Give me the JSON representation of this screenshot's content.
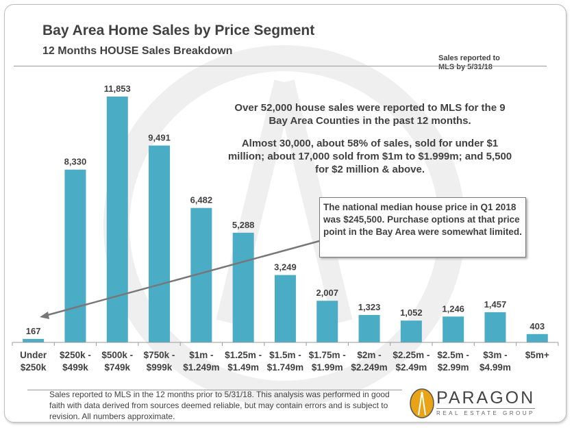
{
  "header": {
    "title": "Bay Area Home Sales by Price Segment",
    "subtitle": "12 Months HOUSE Sales Breakdown",
    "note_line1": "Sales reported to",
    "note_line2": "MLS by 5/31/18"
  },
  "annotations": {
    "summary_p1": "Over 52,000 house sales were reported to MLS for the 9 Bay Area Counties in the past 12 months.",
    "summary_p2": "Almost 30,000, about 58% of sales, sold for under $1 million; about 17,000 sold from $1m to $1.999m; and 5,500 for $2 million & above.",
    "callout": "The national median house price in Q1 2018 was $245,500. Purchase options at that price point in the Bay Area were somewhat limited."
  },
  "footer": {
    "disclaimer": "Sales reported to MLS in the 12 months prior to 5/31/18. This analysis was performed in good faith with data derived from sources deemed reliable, but may contain errors and is subject to revision. All numbers approximate.",
    "logo_name": "PARAGON",
    "logo_tagline": "REAL ESTATE GROUP"
  },
  "chart_data": {
    "type": "bar",
    "categories": [
      [
        "Under",
        "$250k"
      ],
      [
        "$250k -",
        "$499k"
      ],
      [
        "$500k -",
        "$749k"
      ],
      [
        "$750k -",
        "$999k"
      ],
      [
        "$1m -",
        "$1.249m"
      ],
      [
        "$1.25m -",
        "$1.49m"
      ],
      [
        "$1.5m -",
        "$1.749m"
      ],
      [
        "$1.75m -",
        "$1.99m"
      ],
      [
        "$2m -",
        "$2.249m"
      ],
      [
        "$2.25m -",
        "$2.49m"
      ],
      [
        "$2.5m -",
        "$2.99m"
      ],
      [
        "$3m -",
        "$4.99m"
      ],
      [
        "$5m+",
        ""
      ]
    ],
    "values": [
      167,
      8330,
      11853,
      9491,
      6482,
      5288,
      3249,
      2007,
      1323,
      1052,
      1246,
      1457,
      403
    ],
    "data_labels": [
      "167",
      "8,330",
      "11,853",
      "9,491",
      "6,482",
      "5,288",
      "3,249",
      "2,007",
      "1,323",
      "1,052",
      "1,246",
      "1,457",
      "403"
    ],
    "bar_color": "#4bacc6",
    "ylim": [
      0,
      11853
    ],
    "grid": false,
    "legend": "none"
  }
}
